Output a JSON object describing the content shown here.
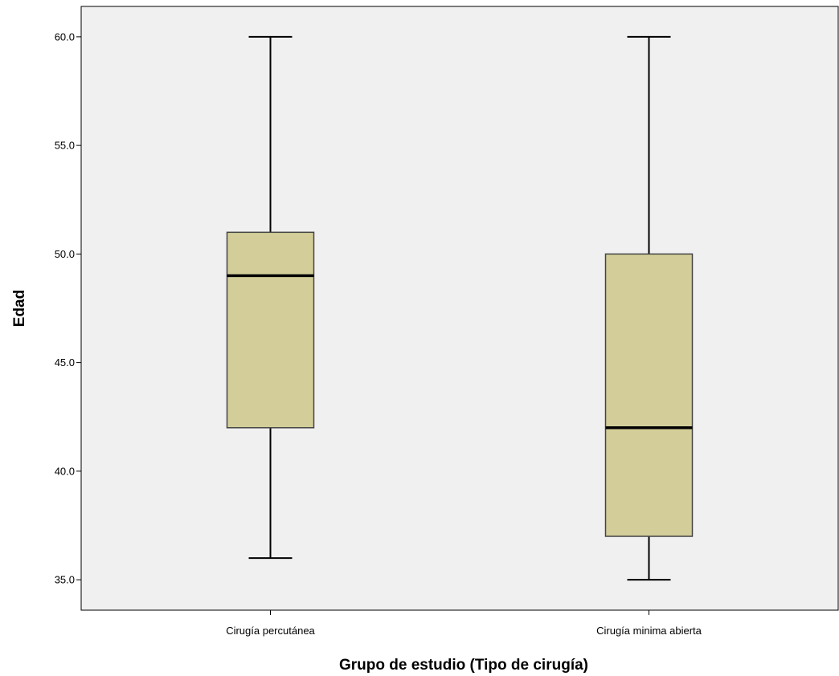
{
  "chart_data": {
    "type": "boxplot",
    "xlabel": "Grupo de estudio (Tipo de cirugía)",
    "ylabel": "Edad",
    "ylim": [
      33.6,
      61.4
    ],
    "yticks": [
      35.0,
      40.0,
      45.0,
      50.0,
      55.0,
      60.0
    ],
    "ytick_labels": [
      "35.0",
      "40.0",
      "45.0",
      "50.0",
      "55.0",
      "60.0"
    ],
    "grid": false,
    "categories": [
      "Cirugía percutánea",
      "Cirugía minima abierta"
    ],
    "boxes": [
      {
        "category": "Cirugía percutánea",
        "min": 36,
        "q1": 42,
        "median": 49,
        "q3": 51,
        "max": 60
      },
      {
        "category": "Cirugía minima abierta",
        "min": 35,
        "q1": 37,
        "median": 42,
        "q3": 50,
        "max": 60
      }
    ],
    "colors": {
      "box_fill": "#d3ce99",
      "plot_background": "#f0f0f0",
      "line": "#000000",
      "box_border": "#444444"
    }
  }
}
